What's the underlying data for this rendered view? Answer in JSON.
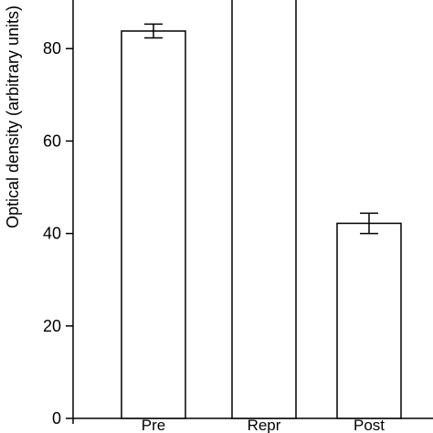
{
  "chart_data": {
    "type": "bar",
    "categories": [
      "Pre",
      "Repr",
      "Post"
    ],
    "values": [
      83.8,
      100,
      42.2
    ],
    "error": [
      1.5,
      null,
      2.2
    ],
    "ylabel": "Optical density (arbitrary units)",
    "xlabel": "",
    "ylim": [
      0,
      92
    ],
    "yticks": [
      0,
      20,
      40,
      60,
      80
    ],
    "grid": false,
    "bar_fill": "#ffffff",
    "bar_stroke": "#000000"
  }
}
